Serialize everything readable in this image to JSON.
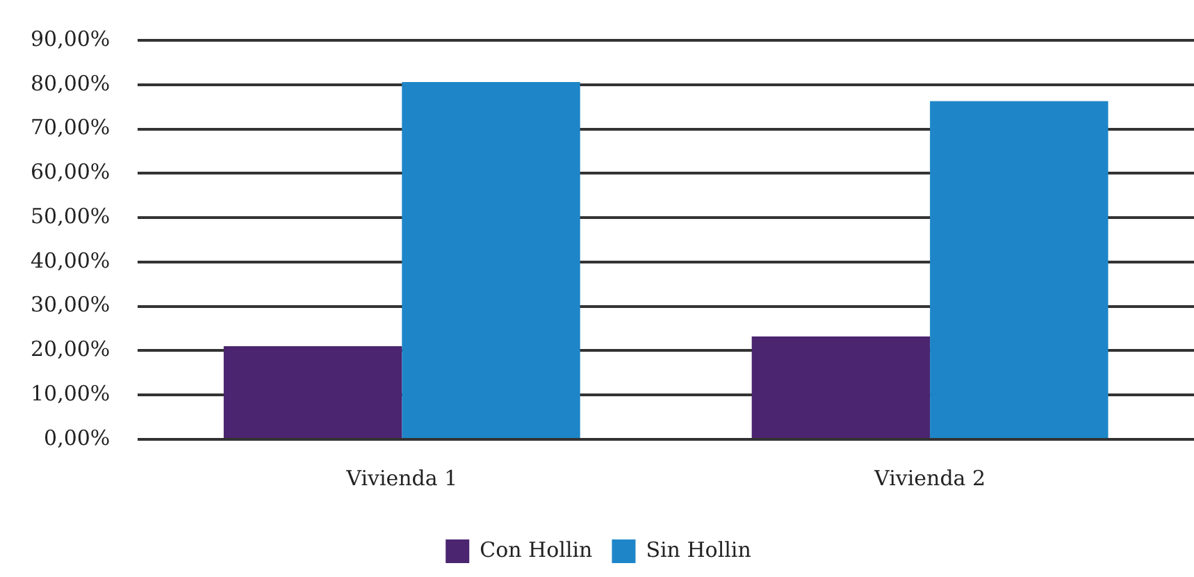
{
  "chart_data": {
    "type": "bar",
    "categories": [
      "Vivienda 1",
      "Vivienda 2"
    ],
    "series": [
      {
        "name": "Con Hollin",
        "color": "#4b2570",
        "values": [
          21.0,
          23.2
        ]
      },
      {
        "name": "Sin Hollin",
        "color": "#1e86c8",
        "values": [
          80.6,
          76.3
        ]
      }
    ],
    "ylim": [
      0,
      90
    ],
    "yticks": [
      {
        "value": 0,
        "label": "0,00%"
      },
      {
        "value": 10,
        "label": "10,00%"
      },
      {
        "value": 20,
        "label": "20,00%"
      },
      {
        "value": 30,
        "label": "30,00%"
      },
      {
        "value": 40,
        "label": "40,00%"
      },
      {
        "value": 50,
        "label": "50,00%"
      },
      {
        "value": 60,
        "label": "60,00%"
      },
      {
        "value": 70,
        "label": "70,00%"
      },
      {
        "value": 80,
        "label": "80,00%"
      },
      {
        "value": 90,
        "label": "90,00%"
      }
    ],
    "grid": "y",
    "legend": "bottom"
  }
}
